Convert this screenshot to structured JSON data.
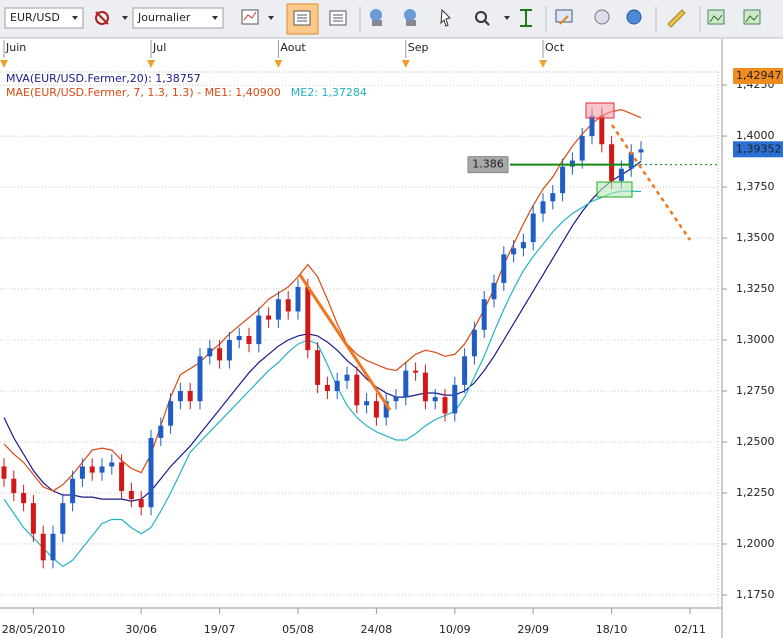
{
  "toolbar": {
    "symbol": "EUR/USD",
    "period": "Journalier"
  },
  "chart_data": {
    "type": "candlestick",
    "categories": [
      null,
      null,
      null,
      "28/05/2010",
      null,
      null,
      null,
      null,
      null,
      null,
      null,
      null,
      null,
      null,
      "30/06",
      null,
      null,
      null,
      null,
      null,
      null,
      null,
      "19/07",
      null,
      null,
      null,
      null,
      null,
      null,
      null,
      "05/08",
      null,
      null,
      null,
      null,
      null,
      null,
      null,
      "24/08",
      null,
      null,
      null,
      null,
      null,
      null,
      null,
      "10/09",
      null,
      null,
      null,
      null,
      null,
      null,
      null,
      "29/09",
      null,
      null,
      null,
      null,
      null,
      null,
      null,
      "18/10",
      null,
      null,
      null,
      null,
      null,
      null,
      null,
      "02/11"
    ],
    "top_categories": [
      "Juin",
      null,
      null,
      null,
      null,
      null,
      null,
      null,
      null,
      null,
      null,
      null,
      null,
      null,
      null,
      "Jul",
      null,
      null,
      null,
      null,
      null,
      null,
      null,
      null,
      null,
      null,
      null,
      null,
      "Aout",
      null,
      null,
      null,
      null,
      null,
      null,
      null,
      null,
      null,
      null,
      null,
      null,
      "Sep",
      null,
      null,
      null,
      null,
      null,
      null,
      null,
      null,
      null,
      null,
      null,
      null,
      null,
      "Oct",
      null,
      null,
      null,
      null,
      null,
      null,
      null,
      null,
      null,
      null,
      null,
      null,
      null,
      null,
      null
    ],
    "open": [
      1.238,
      1.232,
      1.225,
      1.22,
      1.205,
      1.192,
      1.205,
      1.22,
      1.232,
      1.238,
      1.235,
      1.238,
      1.24,
      1.226,
      1.222,
      1.218,
      1.252,
      1.258,
      1.27,
      1.275,
      1.27,
      1.292,
      1.296,
      1.29,
      1.3,
      1.302,
      1.298,
      1.312,
      1.31,
      1.32,
      1.314,
      1.326,
      1.295,
      1.278,
      1.275,
      1.28,
      1.283,
      1.268,
      1.27,
      1.262,
      1.27,
      1.272,
      1.285,
      1.284,
      1.27,
      1.272,
      1.264,
      1.278,
      1.292,
      1.305,
      1.32,
      1.328,
      1.342,
      1.345,
      1.348,
      1.362,
      1.368,
      1.372,
      1.385,
      1.388,
      1.4,
      1.41,
      1.396,
      1.378,
      1.384,
      1.392,
      null,
      null,
      null,
      null,
      null
    ],
    "high": [
      1.242,
      1.236,
      1.229,
      1.224,
      1.209,
      1.209,
      1.224,
      1.236,
      1.242,
      1.242,
      1.242,
      1.244,
      1.244,
      1.23,
      1.226,
      1.256,
      1.262,
      1.274,
      1.279,
      1.279,
      1.296,
      1.3,
      1.3,
      1.304,
      1.306,
      1.306,
      1.316,
      1.316,
      1.324,
      1.324,
      1.33,
      1.33,
      1.299,
      1.282,
      1.284,
      1.287,
      1.287,
      1.274,
      1.274,
      1.274,
      1.276,
      1.289,
      1.289,
      1.288,
      1.276,
      1.276,
      1.282,
      1.296,
      1.309,
      1.324,
      1.332,
      1.346,
      1.349,
      1.352,
      1.366,
      1.372,
      1.376,
      1.389,
      1.392,
      1.404,
      1.414,
      1.414,
      1.4,
      1.388,
      1.396,
      1.3975,
      null,
      null,
      null,
      null,
      null
    ],
    "low": [
      1.228,
      1.221,
      1.216,
      1.201,
      1.188,
      1.188,
      1.201,
      1.216,
      1.228,
      1.231,
      1.231,
      1.234,
      1.222,
      1.218,
      1.214,
      1.214,
      1.248,
      1.254,
      1.266,
      1.266,
      1.266,
      1.288,
      1.286,
      1.286,
      1.296,
      1.294,
      1.294,
      1.306,
      1.306,
      1.31,
      1.31,
      1.291,
      1.274,
      1.271,
      1.271,
      1.276,
      1.264,
      1.264,
      1.258,
      1.258,
      1.266,
      1.268,
      1.28,
      1.266,
      1.266,
      1.26,
      1.26,
      1.274,
      1.288,
      1.301,
      1.316,
      1.324,
      1.338,
      1.341,
      1.344,
      1.358,
      1.364,
      1.368,
      1.381,
      1.384,
      1.396,
      1.392,
      1.374,
      1.374,
      1.38,
      1.388,
      null,
      null,
      null,
      null,
      null
    ],
    "close": [
      1.232,
      1.225,
      1.22,
      1.205,
      1.192,
      1.205,
      1.22,
      1.232,
      1.238,
      1.235,
      1.238,
      1.24,
      1.226,
      1.222,
      1.218,
      1.252,
      1.258,
      1.27,
      1.275,
      1.27,
      1.292,
      1.296,
      1.29,
      1.3,
      1.302,
      1.298,
      1.312,
      1.31,
      1.32,
      1.314,
      1.326,
      1.295,
      1.278,
      1.275,
      1.28,
      1.283,
      1.268,
      1.27,
      1.262,
      1.27,
      1.272,
      1.285,
      1.284,
      1.27,
      1.272,
      1.264,
      1.278,
      1.292,
      1.305,
      1.32,
      1.328,
      1.342,
      1.345,
      1.348,
      1.362,
      1.368,
      1.372,
      1.385,
      1.388,
      1.4,
      1.41,
      1.396,
      1.378,
      1.384,
      1.392,
      1.3935,
      null,
      null,
      null,
      null,
      null
    ],
    "up_color": "#1f5cc4",
    "down_color": "#d01818",
    "indicator_label": "MAE(EUR/USD.Fermer, 7, 1.3, 1.3) - ",
    "series": [
      {
        "name": "MVA(EUR/USD.Fermer,20): 1,38757",
        "color": "#1a1a8c",
        "values": [
          1.262,
          1.252,
          1.244,
          1.236,
          1.23,
          1.226,
          1.224,
          1.224,
          1.223,
          1.223,
          1.222,
          1.222,
          1.222,
          1.221,
          1.222,
          1.226,
          1.232,
          1.238,
          1.243,
          1.248,
          1.254,
          1.26,
          1.266,
          1.272,
          1.278,
          1.284,
          1.289,
          1.293,
          1.297,
          1.3,
          1.302,
          1.303,
          1.302,
          1.299,
          1.295,
          1.29,
          1.286,
          1.281,
          1.277,
          1.274,
          1.272,
          1.272,
          1.273,
          1.274,
          1.274,
          1.273,
          1.273,
          1.275,
          1.279,
          1.285,
          1.292,
          1.3,
          1.308,
          1.316,
          1.324,
          1.332,
          1.34,
          1.348,
          1.356,
          1.363,
          1.369,
          1.374,
          1.378,
          1.381,
          1.384,
          1.38757,
          null,
          null,
          null,
          null,
          null
        ]
      },
      {
        "name": "ME1: 1,40900",
        "color": "#d84a12",
        "values": [
          1.249,
          1.244,
          1.24,
          1.234,
          1.228,
          1.226,
          1.229,
          1.234,
          1.24,
          1.246,
          1.247,
          1.246,
          1.241,
          1.237,
          1.235,
          1.244,
          1.258,
          1.272,
          1.283,
          1.286,
          1.289,
          1.294,
          1.298,
          1.303,
          1.307,
          1.311,
          1.315,
          1.32,
          1.323,
          1.326,
          1.331,
          1.337,
          1.331,
          1.32,
          1.308,
          1.298,
          1.293,
          1.29,
          1.288,
          1.286,
          1.285,
          1.289,
          1.293,
          1.295,
          1.294,
          1.292,
          1.293,
          1.298,
          1.306,
          1.315,
          1.325,
          1.337,
          1.347,
          1.357,
          1.366,
          1.374,
          1.38,
          1.388,
          1.395,
          1.401,
          1.406,
          1.41,
          1.412,
          1.413,
          1.411,
          1.409,
          null,
          null,
          null,
          null,
          null
        ]
      },
      {
        "name": "ME2: 1,37284",
        "color": "#22b4c4",
        "values": [
          1.222,
          1.215,
          1.208,
          1.203,
          1.198,
          1.193,
          1.189,
          1.192,
          1.198,
          1.204,
          1.21,
          1.212,
          1.212,
          1.208,
          1.205,
          1.208,
          1.216,
          1.225,
          1.235,
          1.245,
          1.25,
          1.255,
          1.26,
          1.265,
          1.27,
          1.275,
          1.28,
          1.285,
          1.289,
          1.294,
          1.298,
          1.3,
          1.298,
          1.288,
          1.277,
          1.268,
          1.262,
          1.258,
          1.255,
          1.253,
          1.251,
          1.251,
          1.254,
          1.258,
          1.261,
          1.263,
          1.265,
          1.272,
          1.282,
          1.292,
          1.304,
          1.315,
          1.325,
          1.334,
          1.341,
          1.347,
          1.353,
          1.358,
          1.362,
          1.365,
          1.368,
          1.37,
          1.372,
          1.373,
          1.373,
          1.37284,
          null,
          null,
          null,
          null,
          null
        ]
      }
    ],
    "ylim": [
      1.1686,
      1.4324
    ],
    "yticks": [
      {
        "value": 1.425,
        "label": "1,4250"
      },
      {
        "value": 1.4,
        "label": "1,4000"
      },
      {
        "value": 1.375,
        "label": "1,3750"
      },
      {
        "value": 1.35,
        "label": "1,3500"
      },
      {
        "value": 1.325,
        "label": "1,3250"
      },
      {
        "value": 1.3,
        "label": "1,3000"
      },
      {
        "value": 1.275,
        "label": "1,2750"
      },
      {
        "value": 1.25,
        "label": "1,2500"
      },
      {
        "value": 1.225,
        "label": "1,2250"
      },
      {
        "value": 1.2,
        "label": "1,2000"
      },
      {
        "value": 1.175,
        "label": "1,1750"
      }
    ],
    "grid": true,
    "hline": {
      "value": 1.386,
      "label": "1.386",
      "color": "#118811"
    },
    "high_price": {
      "value": 1.42947,
      "label": "1,42947",
      "color": "#f08c1e"
    },
    "last_price": {
      "value": 1.39352,
      "label": "1,39352",
      "color": "#2a6fd4"
    }
  }
}
